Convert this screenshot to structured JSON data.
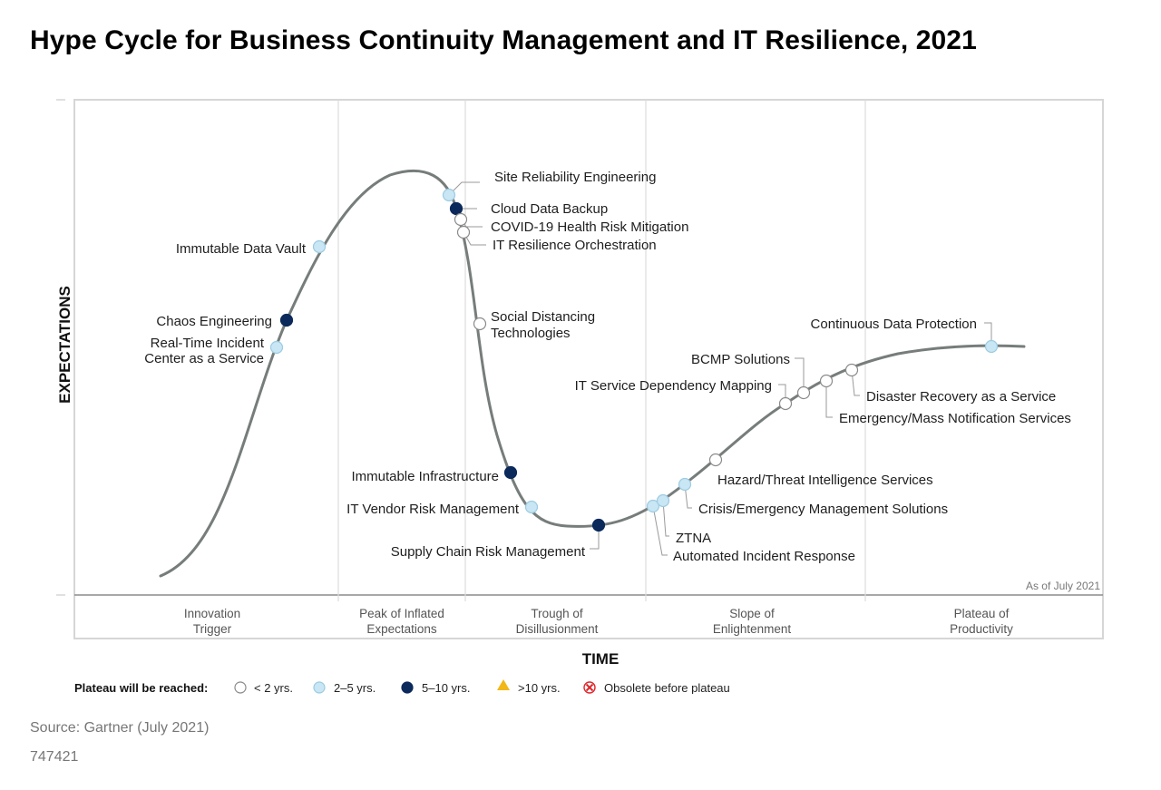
{
  "title": "Hype Cycle for Business Continuity Management and IT Resilience, 2021",
  "axes": {
    "y_label": "EXPECTATIONS",
    "x_label": "TIME"
  },
  "as_of": "As of July 2021",
  "phases": [
    {
      "line1": "Innovation",
      "line2": "Trigger"
    },
    {
      "line1": "Peak of Inflated",
      "line2": "Expectations"
    },
    {
      "line1": "Trough of",
      "line2": "Disillusionment"
    },
    {
      "line1": "Slope of",
      "line2": "Enlightenment"
    },
    {
      "line1": "Plateau of",
      "line2": "Productivity"
    }
  ],
  "technologies": [
    {
      "id": "site-reliability-engineering",
      "lines": [
        "Site Reliability Engineering"
      ],
      "category": "2-5"
    },
    {
      "id": "cloud-data-backup",
      "lines": [
        "Cloud Data Backup"
      ],
      "category": "5-10"
    },
    {
      "id": "covid-19-health-risk-mitigation",
      "lines": [
        "COVID-19 Health Risk Mitigation"
      ],
      "category": "lt2"
    },
    {
      "id": "it-resilience-orchestration",
      "lines": [
        "IT Resilience Orchestration"
      ],
      "category": "lt2"
    },
    {
      "id": "immutable-data-vault",
      "lines": [
        "Immutable Data Vault"
      ],
      "category": "2-5"
    },
    {
      "id": "chaos-engineering",
      "lines": [
        "Chaos Engineering"
      ],
      "category": "5-10"
    },
    {
      "id": "real-time-incident-center",
      "lines": [
        "Real-Time Incident",
        "Center as a Service"
      ],
      "category": "2-5"
    },
    {
      "id": "social-distancing-technologies",
      "lines": [
        "Social Distancing",
        "Technologies"
      ],
      "category": "lt2"
    },
    {
      "id": "immutable-infrastructure",
      "lines": [
        "Immutable Infrastructure"
      ],
      "category": "5-10"
    },
    {
      "id": "it-vendor-risk-management",
      "lines": [
        "IT Vendor Risk Management"
      ],
      "category": "2-5"
    },
    {
      "id": "supply-chain-risk-management",
      "lines": [
        "Supply Chain Risk Management"
      ],
      "category": "5-10"
    },
    {
      "id": "ztna",
      "lines": [
        "ZTNA"
      ],
      "category": "2-5"
    },
    {
      "id": "automated-incident-response",
      "lines": [
        "Automated Incident Response"
      ],
      "category": "2-5"
    },
    {
      "id": "crisis-emergency-management-solutions",
      "lines": [
        "Crisis/Emergency Management Solutions"
      ],
      "category": "2-5"
    },
    {
      "id": "hazard-threat-intelligence-services",
      "lines": [
        "Hazard/Threat Intelligence Services"
      ],
      "category": "lt2"
    },
    {
      "id": "it-service-dependency-mapping",
      "lines": [
        "IT Service Dependency Mapping"
      ],
      "category": "lt2"
    },
    {
      "id": "bcmp-solutions",
      "lines": [
        "BCMP Solutions"
      ],
      "category": "lt2"
    },
    {
      "id": "emergency-mass-notification-services",
      "lines": [
        "Emergency/Mass Notification Services"
      ],
      "category": "lt2"
    },
    {
      "id": "disaster-recovery-as-a-service",
      "lines": [
        "Disaster Recovery as a Service"
      ],
      "category": "lt2"
    },
    {
      "id": "continuous-data-protection",
      "lines": [
        "Continuous Data Protection"
      ],
      "category": "2-5"
    }
  ],
  "legend": {
    "title": "Plateau will be reached:",
    "items": [
      {
        "key": "lt2",
        "label": "< 2 yrs.",
        "fill": "#ffffff",
        "stroke": "#8a8a8a"
      },
      {
        "key": "2-5",
        "label": "2–5 yrs.",
        "fill": "#c8e6f4",
        "stroke": "#9ccbe2"
      },
      {
        "key": "5-10",
        "label": "5–10 yrs.",
        "fill": "#0b2a5b",
        "stroke": "#0b2a5b"
      },
      {
        "key": "gt10",
        "label": ">10 yrs.",
        "fill": "#f2b718",
        "stroke": "#f2b718"
      },
      {
        "key": "obsolete",
        "label": "Obsolete before plateau",
        "fill": "#ffffff",
        "stroke": "#e0262b"
      }
    ]
  },
  "source": "Source: Gartner (July 2021)",
  "doc_id": "747421"
}
